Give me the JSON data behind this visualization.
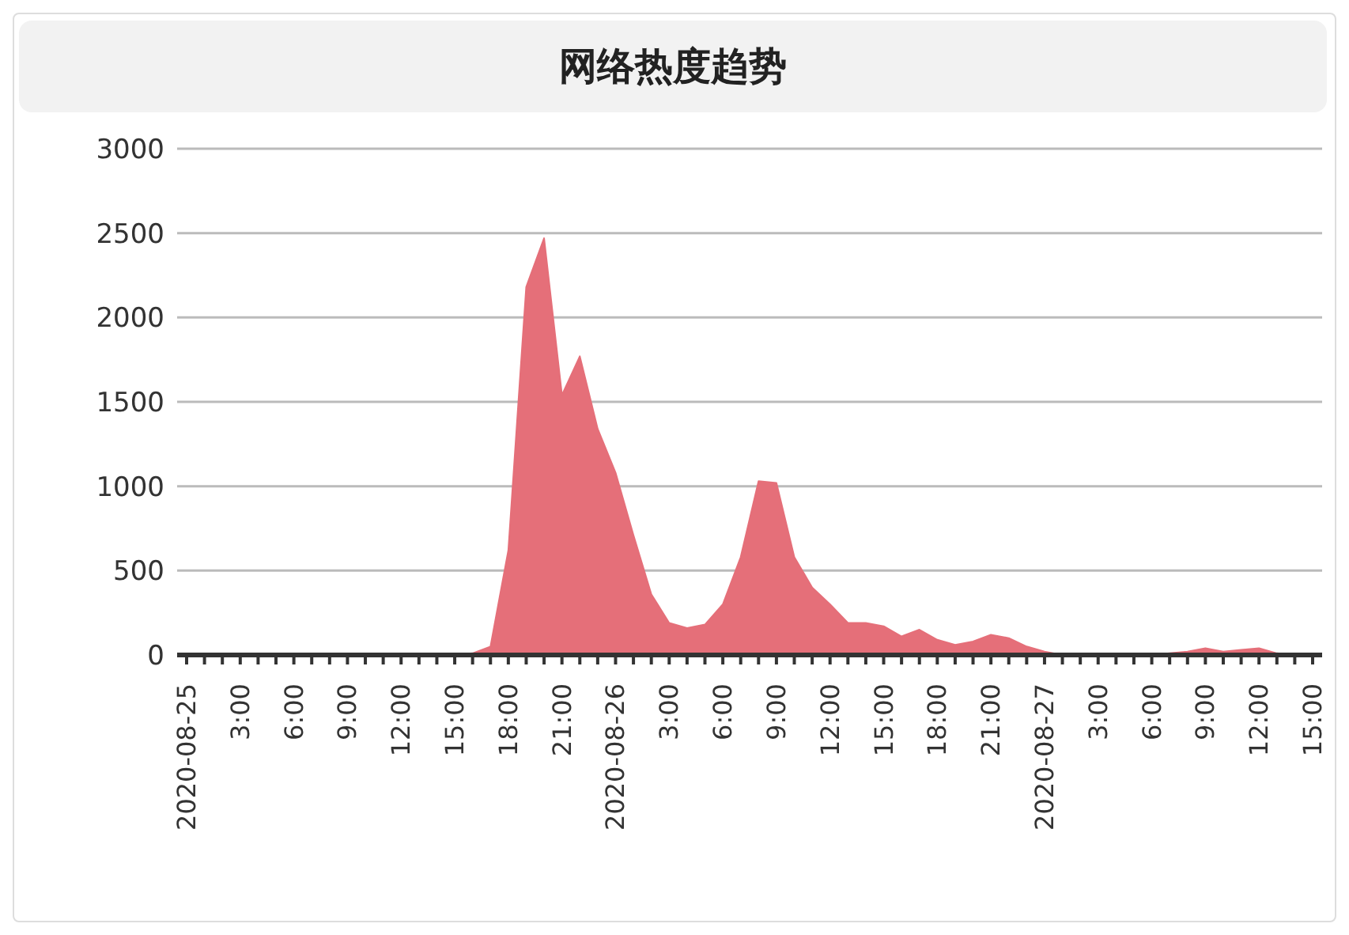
{
  "chart_data": {
    "type": "area",
    "title": "网络热度趋势",
    "categories": [
      "2020-08-25",
      null,
      null,
      "3:00",
      null,
      null,
      "6:00",
      null,
      null,
      "9:00",
      null,
      null,
      "12:00",
      null,
      null,
      "15:00",
      null,
      null,
      "18:00",
      null,
      null,
      "21:00",
      null,
      null,
      "2020-08-26",
      null,
      null,
      "3:00",
      null,
      null,
      "6:00",
      null,
      null,
      "9:00",
      null,
      null,
      "12:00",
      null,
      null,
      "15:00",
      null,
      null,
      "18:00",
      null,
      null,
      "21:00",
      null,
      null,
      "2020-08-27",
      null,
      null,
      "3:00",
      null,
      null,
      "6:00",
      null,
      null,
      "9:00",
      null,
      null,
      "12:00",
      null,
      null,
      "15:00"
    ],
    "series": [
      {
        "color": "#e56f79",
        "values": [
          0,
          0,
          0,
          0,
          0,
          0,
          0,
          0,
          0,
          0,
          0,
          0,
          0,
          0,
          0,
          0,
          10,
          50,
          620,
          2180,
          2470,
          1540,
          1770,
          1340,
          1080,
          710,
          360,
          190,
          160,
          180,
          300,
          580,
          1030,
          1020,
          580,
          400,
          300,
          190,
          190,
          170,
          110,
          150,
          90,
          60,
          80,
          120,
          100,
          50,
          20,
          0,
          0,
          0,
          0,
          0,
          0,
          10,
          20,
          40,
          20,
          30,
          40,
          10,
          0,
          0
        ]
      }
    ],
    "ylim": [
      0,
      3000
    ],
    "yticks": [
      0,
      500,
      1000,
      1500,
      2000,
      2500,
      3000
    ],
    "grid": "y"
  }
}
